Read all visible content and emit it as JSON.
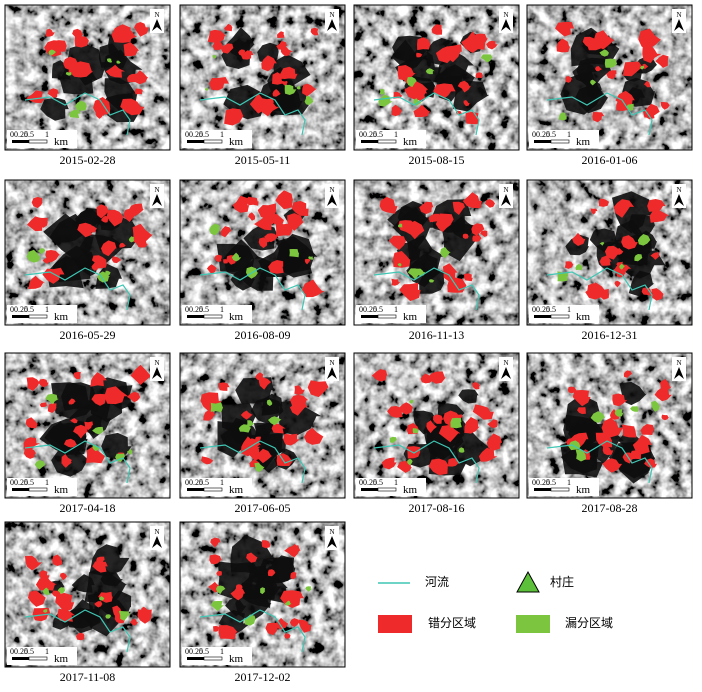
{
  "panels": [
    {
      "date": "2015-02-28"
    },
    {
      "date": "2015-05-11"
    },
    {
      "date": "2015-08-15"
    },
    {
      "date": "2016-01-06"
    },
    {
      "date": "2016-05-29"
    },
    {
      "date": "2016-08-09"
    },
    {
      "date": "2016-11-13"
    },
    {
      "date": "2016-12-31"
    },
    {
      "date": "2017-04-18"
    },
    {
      "date": "2017-06-05"
    },
    {
      "date": "2017-08-16"
    },
    {
      "date": "2017-08-28"
    },
    {
      "date": "2017-11-08"
    },
    {
      "date": "2017-12-02"
    }
  ],
  "scale_bar": {
    "ticks": [
      "0",
      "0.25",
      "0.5",
      "1"
    ],
    "unit": "km"
  },
  "north": "N",
  "legend": {
    "river": "河流",
    "village": "村庄",
    "misclassified": "错分区域",
    "omitted": "漏分区域"
  }
}
